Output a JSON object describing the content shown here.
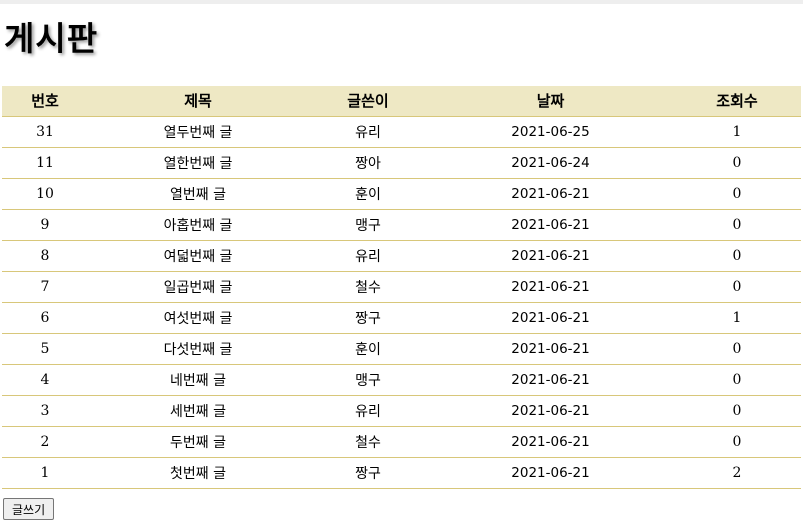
{
  "page": {
    "title": "게시판",
    "write_button": "글쓰기"
  },
  "table": {
    "headers": [
      "번호",
      "제목",
      "글쓴이",
      "날짜",
      "조회수"
    ],
    "rows": [
      {
        "num": "31",
        "title": "열두번째 글",
        "writer": "유리",
        "date": "2021-06-25",
        "views": "1"
      },
      {
        "num": "11",
        "title": "열한번째 글",
        "writer": "짱아",
        "date": "2021-06-24",
        "views": "0"
      },
      {
        "num": "10",
        "title": "열번째 글",
        "writer": "훈이",
        "date": "2021-06-21",
        "views": "0"
      },
      {
        "num": "9",
        "title": "아홉번째 글",
        "writer": "맹구",
        "date": "2021-06-21",
        "views": "0"
      },
      {
        "num": "8",
        "title": "여덟번째 글",
        "writer": "유리",
        "date": "2021-06-21",
        "views": "0"
      },
      {
        "num": "7",
        "title": "일곱번째 글",
        "writer": "철수",
        "date": "2021-06-21",
        "views": "0"
      },
      {
        "num": "6",
        "title": "여섯번째 글",
        "writer": "짱구",
        "date": "2021-06-21",
        "views": "1"
      },
      {
        "num": "5",
        "title": "다섯번째 글",
        "writer": "훈이",
        "date": "2021-06-21",
        "views": "0"
      },
      {
        "num": "4",
        "title": "네번째 글",
        "writer": "맹구",
        "date": "2021-06-21",
        "views": "0"
      },
      {
        "num": "3",
        "title": "세번째 글",
        "writer": "유리",
        "date": "2021-06-21",
        "views": "0"
      },
      {
        "num": "2",
        "title": "두번째 글",
        "writer": "철수",
        "date": "2021-06-21",
        "views": "0"
      },
      {
        "num": "1",
        "title": "첫번째 글",
        "writer": "짱구",
        "date": "2021-06-21",
        "views": "2"
      }
    ]
  },
  "colors": {
    "header_bg": "#eee8c4",
    "row_border": "#d8c77a"
  }
}
